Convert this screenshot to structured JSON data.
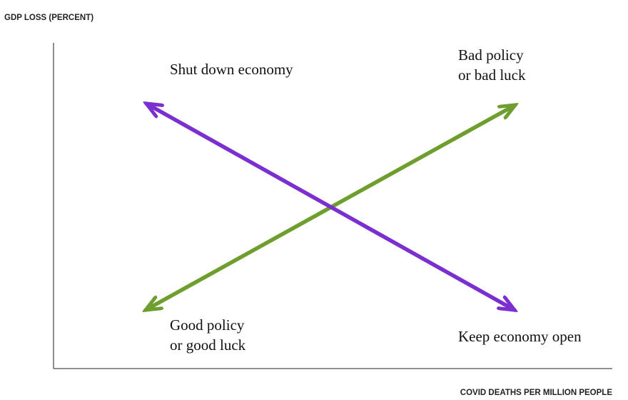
{
  "axes": {
    "y_title": "GDP LOSS (PERCENT)",
    "x_title": "COVID DEATHS PER MILLION PEOPLE",
    "axis_color": "#222222"
  },
  "labels": {
    "top_left": [
      "Shut down economy"
    ],
    "top_right": [
      "Bad policy",
      "or bad luck"
    ],
    "bottom_left": [
      "Good policy",
      "or good luck"
    ],
    "bottom_right": [
      "Keep economy open"
    ]
  },
  "arrows": {
    "tradeoff": {
      "color": "#7b2fd0",
      "direction": "top-left to bottom-right"
    },
    "outcome": {
      "color": "#6e9e2e",
      "direction": "bottom-left to top-right"
    }
  }
}
